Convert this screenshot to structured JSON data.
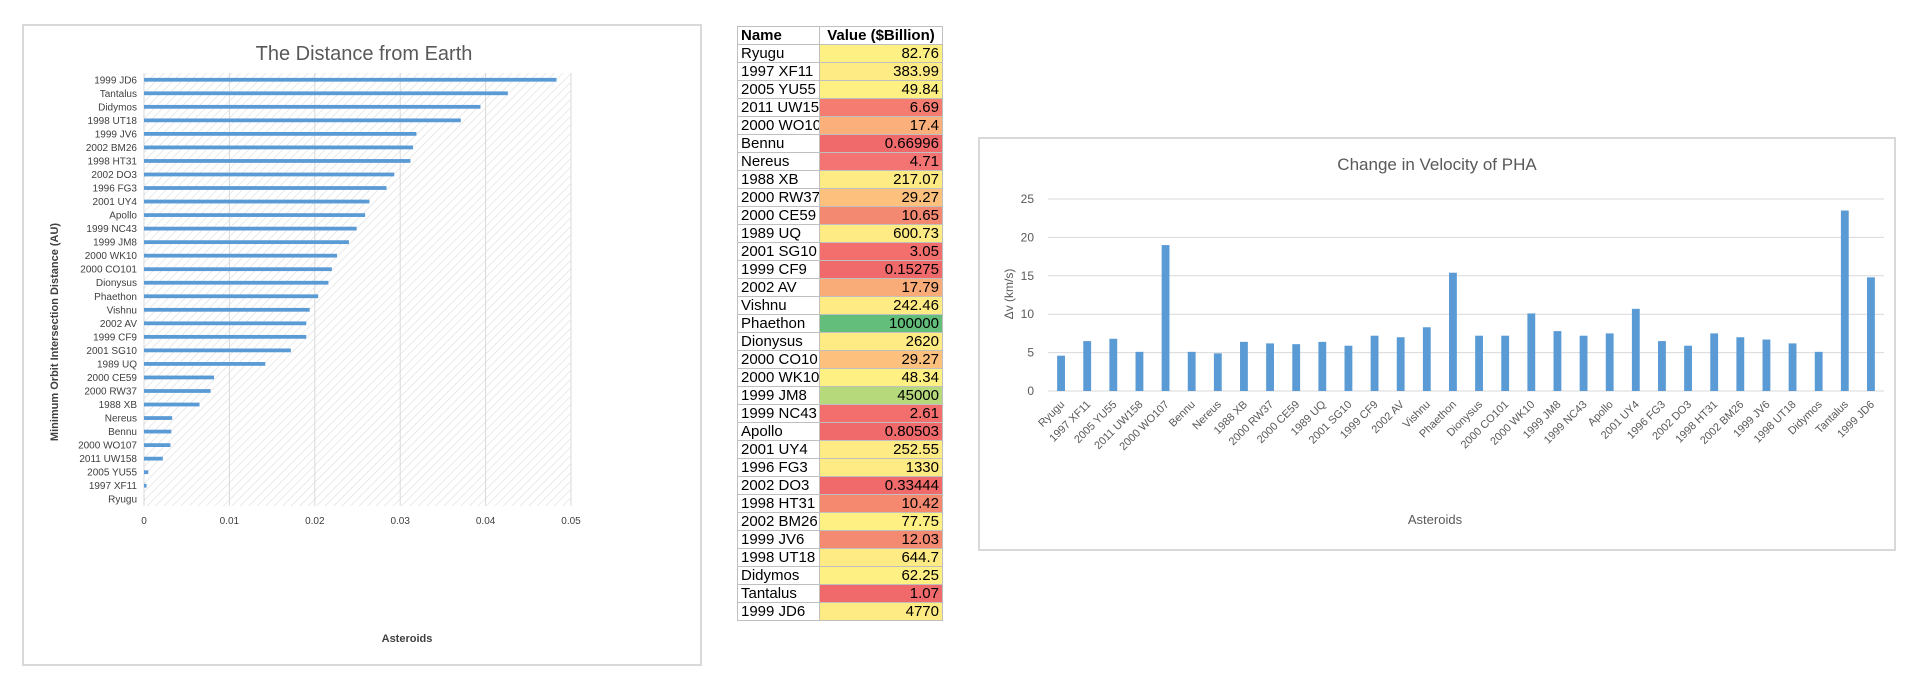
{
  "colors": {
    "bar": "#5b9bd5",
    "grid": "#d9d9d9",
    "hatch": "#dcdcdc",
    "table_scale": [
      "#f8696b",
      "#ffeb84",
      "#63be7b"
    ]
  },
  "chart_data": [
    {
      "type": "bar",
      "orientation": "horizontal",
      "title": "The Distance from Earth",
      "xlabel": "Asteroids",
      "ylabel": "Minimum Orbit Intersection Distance (AU)",
      "xlim": [
        0,
        0.05
      ],
      "xticks": [
        "0",
        "0.01",
        "0.02",
        "0.03",
        "0.04",
        "0.05"
      ],
      "grid": true,
      "categories": [
        "1999 JD6",
        "Tantalus",
        "Didymos",
        "1998 UT18",
        "1999 JV6",
        "2002 BM26",
        "1998 HT31",
        "2002 DO3",
        "1996 FG3",
        "2001 UY4",
        "Apollo",
        "1999 NC43",
        "1999 JM8",
        "2000 WK10",
        "2000 CO101",
        "Dionysus",
        "Phaethon",
        "Vishnu",
        "2002 AV",
        "1999 CF9",
        "2001 SG10",
        "1989 UQ",
        "2000 CE59",
        "2000 RW37",
        "1988 XB",
        "Nereus",
        "Bennu",
        "2000 WO107",
        "2011 UW158",
        "2005 YU55",
        "1997 XF11",
        "Ryugu"
      ],
      "values": [
        0.0483,
        0.0426,
        0.0394,
        0.0371,
        0.0319,
        0.0315,
        0.0312,
        0.0293,
        0.0284,
        0.0264,
        0.0259,
        0.0249,
        0.024,
        0.0226,
        0.022,
        0.0216,
        0.0204,
        0.0194,
        0.019,
        0.019,
        0.0172,
        0.0142,
        0.0082,
        0.0078,
        0.0065,
        0.0033,
        0.0032,
        0.0031,
        0.0022,
        0.0005,
        0.0003,
        1e-05
      ]
    },
    {
      "type": "table",
      "headers": [
        "Name",
        "Value ($Billion)"
      ],
      "rows": [
        [
          "Ryugu",
          "82.76"
        ],
        [
          "1997 XF11",
          "383.99"
        ],
        [
          "2005 YU55",
          "49.84"
        ],
        [
          "2011 UW15",
          "6.69"
        ],
        [
          "2000 WO10",
          "17.4"
        ],
        [
          "Bennu",
          "0.66996"
        ],
        [
          "Nereus",
          "4.71"
        ],
        [
          "1988 XB",
          "217.07"
        ],
        [
          "2000 RW37",
          "29.27"
        ],
        [
          "2000 CE59",
          "10.65"
        ],
        [
          "1989 UQ",
          "600.73"
        ],
        [
          "2001 SG10",
          "3.05"
        ],
        [
          "1999 CF9",
          "0.15275"
        ],
        [
          "2002 AV",
          "17.79"
        ],
        [
          "Vishnu",
          "242.46"
        ],
        [
          "Phaethon",
          "100000"
        ],
        [
          "Dionysus",
          "2620"
        ],
        [
          "2000 CO10",
          "29.27"
        ],
        [
          "2000 WK10",
          "48.34"
        ],
        [
          "1999 JM8",
          "45000"
        ],
        [
          "1999 NC43",
          "2.61"
        ],
        [
          "Apollo",
          "0.80503"
        ],
        [
          "2001 UY4",
          "252.55"
        ],
        [
          "1996 FG3",
          "1330"
        ],
        [
          "2002 DO3",
          "0.33444"
        ],
        [
          "1998 HT31",
          "10.42"
        ],
        [
          "2002 BM26",
          "77.75"
        ],
        [
          "1999 JV6",
          "12.03"
        ],
        [
          "1998 UT18",
          "644.7"
        ],
        [
          "Didymos",
          "62.25"
        ],
        [
          "Tantalus",
          "1.07"
        ],
        [
          "1999 JD6",
          "4770"
        ]
      ],
      "cell_colors": [
        "#fff084",
        "#ffeb84",
        "#fff084",
        "#f47c71",
        "#fbb07b",
        "#f06a6b",
        "#f47474",
        "#ffeb84",
        "#fdc07d",
        "#f48971",
        "#ffeb84",
        "#f26f6e",
        "#f06a6b",
        "#f9ab78",
        "#ffeb84",
        "#63be7b",
        "#ffeb84",
        "#fdc07d",
        "#fff084",
        "#b5d97b",
        "#f26f6e",
        "#f06a6b",
        "#ffeb84",
        "#ffeb84",
        "#f06a6b",
        "#f48970",
        "#fff084",
        "#f58a72",
        "#ffeb84",
        "#fff084",
        "#f0696b",
        "#ffeb84"
      ]
    },
    {
      "type": "bar",
      "title": "Change in Velocity of PHA",
      "xlabel": "Asteroids",
      "ylabel": "Δv (km/s)",
      "ylim": [
        0,
        25
      ],
      "yticks": [
        "0",
        "5",
        "10",
        "15",
        "20",
        "25"
      ],
      "grid": true,
      "categories": [
        "Ryugu",
        "1997 XF11",
        "2005 YU55",
        "2011 UW158",
        "2000 WO107",
        "Bennu",
        "Nereus",
        "1988 XB",
        "2000 RW37",
        "2000 CE59",
        "1989 UQ",
        "2001 SG10",
        "1999 CF9",
        "2002 AV",
        "Vishnu",
        "Phaethon",
        "Dionysus",
        "2000 CO101",
        "2000 WK10",
        "1999 JM8",
        "1999 NC43",
        "Apollo",
        "2001 UY4",
        "1996 FG3",
        "2002 DO3",
        "1998 HT31",
        "2002 BM26",
        "1999 JV6",
        "1998 UT18",
        "Didymos",
        "Tantalus",
        "1999 JD6"
      ],
      "values": [
        4.6,
        6.5,
        6.8,
        5.1,
        19.0,
        5.1,
        4.9,
        6.4,
        6.2,
        6.1,
        6.4,
        5.9,
        7.2,
        7.0,
        8.3,
        15.4,
        7.2,
        7.2,
        10.1,
        7.8,
        7.2,
        7.5,
        10.7,
        6.5,
        5.9,
        7.5,
        7.0,
        6.7,
        6.2,
        5.1,
        23.5,
        14.8
      ]
    }
  ]
}
